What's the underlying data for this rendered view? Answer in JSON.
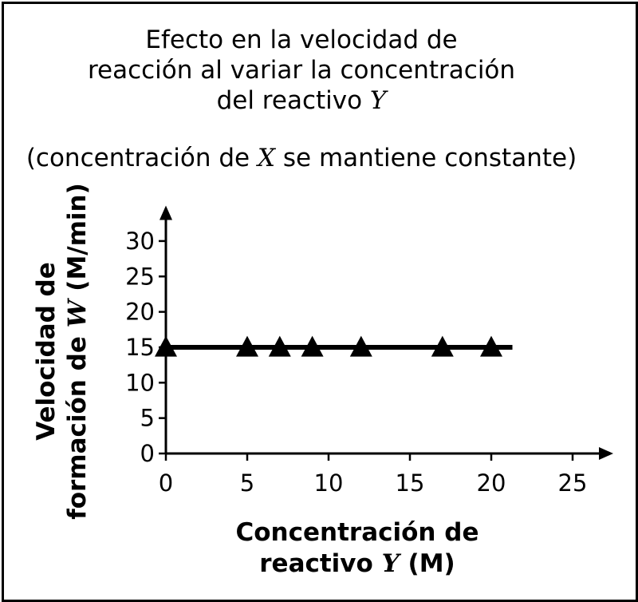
{
  "chart_data": {
    "type": "line",
    "title_lines": [
      [
        "Efecto en la velocidad de"
      ],
      [
        "reacción al variar la concentración"
      ],
      [
        "del reactivo ",
        "Y"
      ]
    ],
    "subtitle": [
      "(concentración de ",
      "X",
      " se mantiene constante)"
    ],
    "ylabel_lines": [
      [
        "Velocidad de"
      ],
      [
        "formación de ",
        "W",
        " (M/min)"
      ]
    ],
    "xlabel_lines": [
      [
        "Concentración de"
      ],
      [
        "reactivo ",
        "Y",
        " (M)"
      ]
    ],
    "x_ticks": [
      0,
      5,
      10,
      15,
      20,
      25
    ],
    "y_ticks": [
      0,
      5,
      10,
      15,
      20,
      25,
      30
    ],
    "xlim": [
      0,
      27.5
    ],
    "ylim": [
      0,
      35
    ],
    "series": [
      {
        "x": [
          0,
          5,
          7,
          9,
          12,
          17,
          20
        ],
        "y": [
          15,
          15,
          15,
          15,
          15,
          15,
          15
        ],
        "marker": "triangle"
      }
    ],
    "line_x_range": [
      0,
      21.3
    ],
    "colors": {
      "line": "#000000",
      "marker": "#000000"
    }
  }
}
